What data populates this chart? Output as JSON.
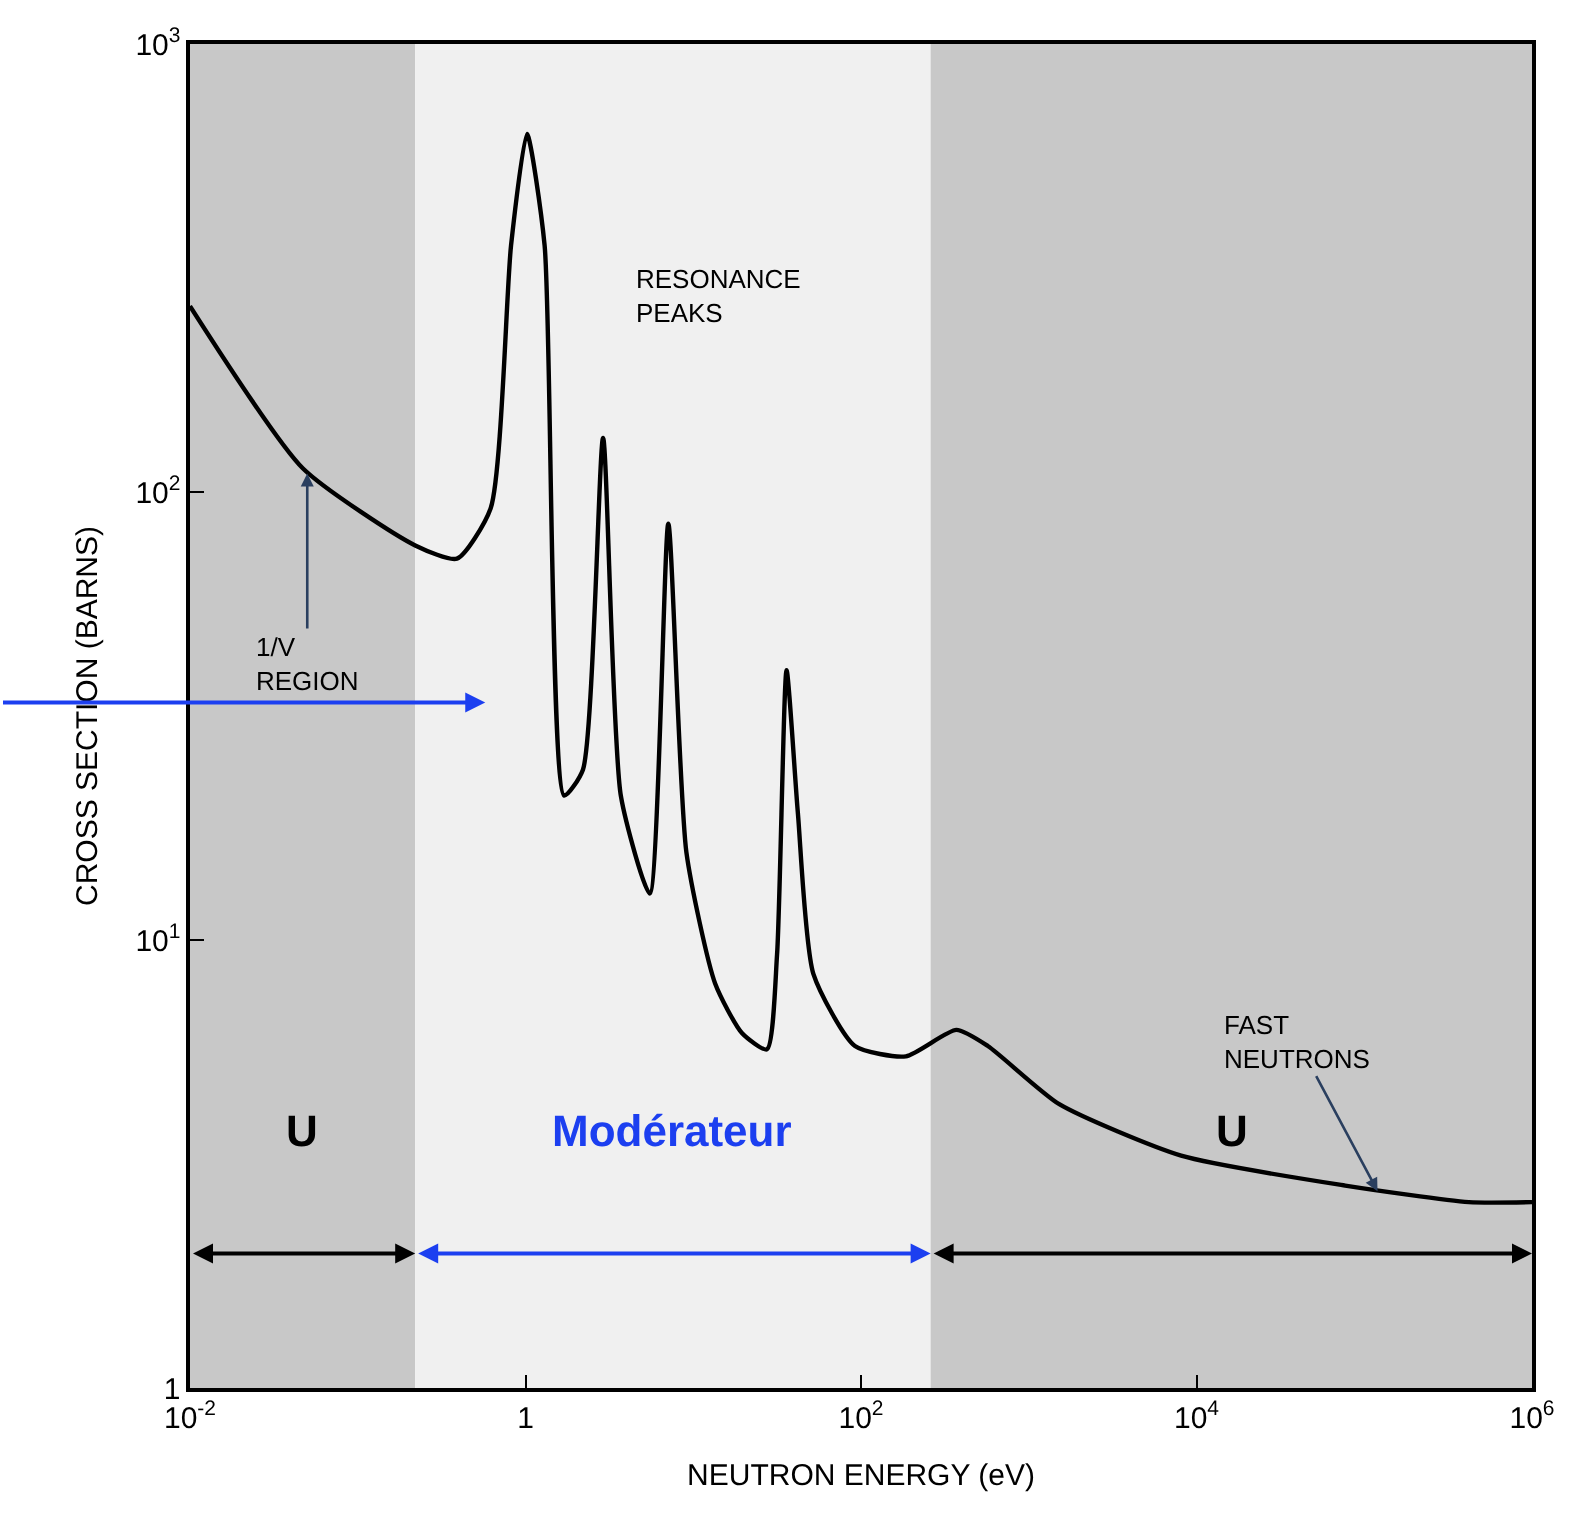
{
  "chart_data": {
    "type": "line",
    "xlabel": "NEUTRON ENERGY (eV)",
    "ylabel": "CROSS SECTION (BARNS)",
    "log": "xy",
    "grid": false,
    "legend": false,
    "marker": "none",
    "line_style": "solid",
    "xlim": [
      0.01,
      1000000
    ],
    "ylim": [
      1,
      1000
    ],
    "xticks": [
      {
        "value": 0.01,
        "label": "10$^{-2}$"
      },
      1,
      {
        "value": 100,
        "label": "10$^{2}$"
      },
      {
        "value": 10000,
        "label": "10$^{4}$"
      },
      {
        "value": 1000000,
        "label": "10$^{6}$"
      }
    ],
    "yticks": [
      1,
      {
        "value": 10,
        "label": "10$^{1}$"
      },
      {
        "value": 100,
        "label": "10$^{2}$"
      },
      {
        "value": 1000,
        "label": "10$^{3}$"
      }
    ],
    "x": [
      0.01,
      0.047,
      0.22,
      0.39,
      0.62,
      0.82,
      1.02,
      1.3,
      1.7,
      2.2,
      2.9,
      3.7,
      5.5,
      7.1,
      9.1,
      13.5,
      19.5,
      27.5,
      31.6,
      36,
      42,
      52,
      92,
      185,
      370,
      570,
      1520,
      8100,
      77000,
      420000,
      1000000
    ],
    "series": [
      {
        "color": "#000000",
        "values": [
          260,
          113,
          76,
          71,
          92,
          355,
          630,
          355,
          21,
          24,
          132,
          21,
          12.7,
          85,
          15.7,
          8.0,
          6.2,
          5.7,
          9.3,
          40,
          19.3,
          8.4,
          5.8,
          5.5,
          6.3,
          5.8,
          4.3,
          3.3,
          2.83,
          2.6,
          2.6
        ]
      }
    ],
    "bands": [
      {
        "axis": "x",
        "from": 0.01,
        "to": 0.22,
        "label": "U",
        "color": "#c8c8c8"
      },
      {
        "axis": "x",
        "from": 0.22,
        "to": 260,
        "label": "Modérateur",
        "color": "#f0f0f0"
      },
      {
        "axis": "x",
        "from": 260,
        "to": 1000000,
        "label": "U",
        "color": "#c8c8c8"
      }
    ],
    "annotations": [
      "RESONANCE\nPEAKS",
      {
        "text": "1/V\nREGION",
        "x": 0.05,
        "y": 110
      },
      {
        "text": "FAST\nNEUTRONS",
        "x": 120000,
        "y": 2.75
      }
    ]
  }
}
